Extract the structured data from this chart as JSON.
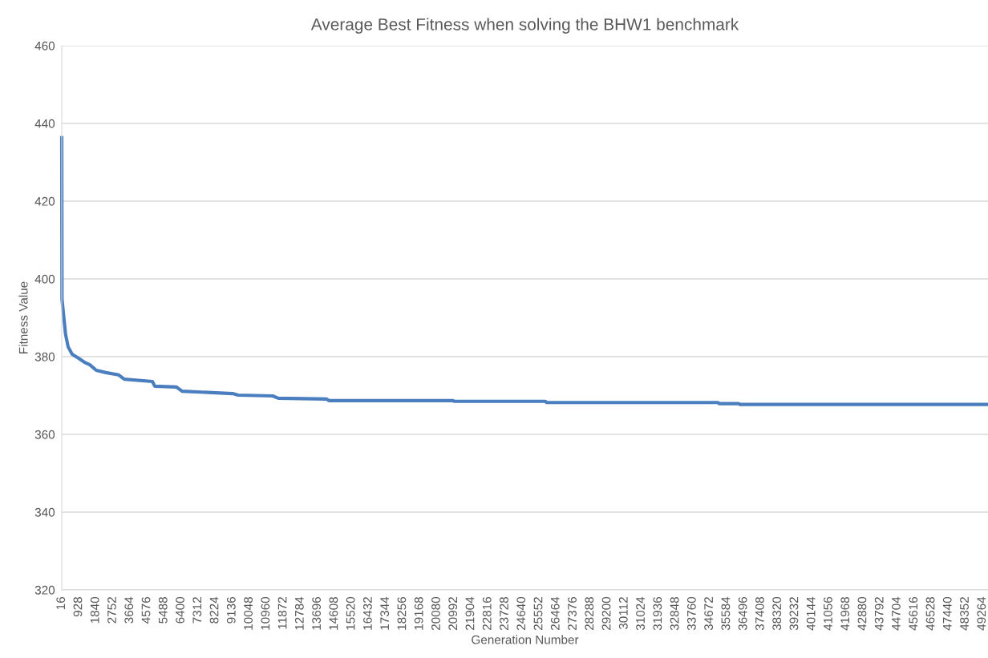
{
  "chart_data": {
    "type": "line",
    "title": "Average Best Fitness when solving the BHW1 benchmark",
    "xlabel": "Generation Number",
    "ylabel": "Fitness Value",
    "xlim": [
      16,
      49560
    ],
    "xticks": [
      16,
      928,
      1840,
      2752,
      3664,
      4576,
      5488,
      6400,
      7312,
      8224,
      9136,
      10048,
      10960,
      11872,
      12784,
      13696,
      14608,
      15520,
      16432,
      17344,
      18256,
      19168,
      20080,
      20992,
      21904,
      22816,
      23728,
      24640,
      25552,
      26464,
      27376,
      28288,
      29200,
      30112,
      31024,
      31936,
      32848,
      33760,
      34672,
      35584,
      36496,
      37408,
      38320,
      39232,
      40144,
      41056,
      41968,
      42880,
      43792,
      44704,
      45616,
      46528,
      47440,
      48352,
      49264
    ],
    "ylim": [
      320,
      460
    ],
    "yticks": [
      320,
      340,
      360,
      380,
      400,
      420,
      440,
      460
    ],
    "grid": "y",
    "marker": "none",
    "line_style": "solid",
    "series": [
      {
        "color": "#4a7ebf",
        "x": [
          16,
          29,
          218,
          359,
          574,
          917,
          1218,
          1518,
          1861,
          2376,
          3062,
          3362,
          4864,
          4993,
          6151,
          6451,
          9154,
          9454,
          11299,
          11599,
          14173,
          14302,
          20951,
          21000,
          25885,
          25950,
          35108,
          35200,
          36224,
          36300,
          49560
        ],
        "values": [
          436.3,
          394.8,
          385.8,
          382.5,
          380.6,
          379.6,
          378.6,
          377.9,
          376.5,
          375.9,
          375.3,
          374.2,
          373.6,
          372.4,
          372.2,
          371.1,
          370.5,
          370.1,
          369.9,
          369.3,
          369.1,
          368.7,
          368.7,
          368.5,
          368.5,
          368.2,
          368.2,
          367.9,
          367.9,
          367.7,
          367.7
        ]
      }
    ]
  }
}
